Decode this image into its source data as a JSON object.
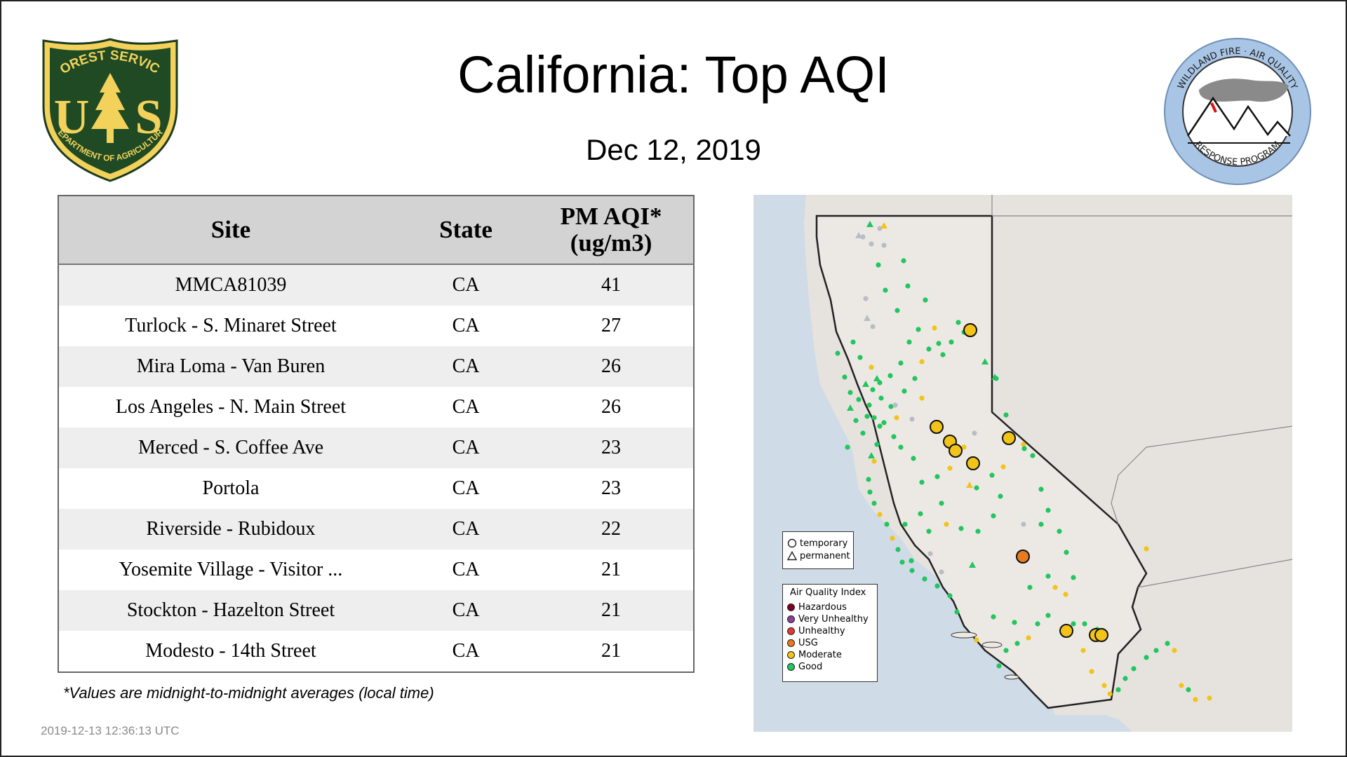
{
  "header": {
    "title": "California: Top AQI",
    "date": "Dec 12, 2019"
  },
  "logos": {
    "usfs": {
      "top_text": "FOREST SERVICE",
      "bottom_text": "DEPARTMENT OF AGRICULTURE",
      "letter_left": "U",
      "letter_right": "S",
      "icon": "tree-icon"
    },
    "wfaq": {
      "top_text": "WILDLAND FIRE · AIR QUALITY",
      "bottom_text": "RESPONSE PROGRAM",
      "icon": "mountain-icon"
    }
  },
  "table": {
    "headers": {
      "site": "Site",
      "state": "State",
      "aqi_line1": "PM AQI*",
      "aqi_line2": "(ug/m3)"
    },
    "rows": [
      {
        "site": "MMCA81039",
        "state": "CA",
        "aqi": "41"
      },
      {
        "site": "Turlock - S. Minaret Street",
        "state": "CA",
        "aqi": "27"
      },
      {
        "site": "Mira Loma - Van Buren",
        "state": "CA",
        "aqi": "26"
      },
      {
        "site": "Los Angeles - N. Main Street",
        "state": "CA",
        "aqi": "26"
      },
      {
        "site": "Merced - S. Coffee Ave",
        "state": "CA",
        "aqi": "23"
      },
      {
        "site": "Portola",
        "state": "CA",
        "aqi": "23"
      },
      {
        "site": "Riverside - Rubidoux",
        "state": "CA",
        "aqi": "22"
      },
      {
        "site": "Yosemite Village - Visitor ...",
        "state": "CA",
        "aqi": "21"
      },
      {
        "site": "Stockton - Hazelton Street",
        "state": "CA",
        "aqi": "21"
      },
      {
        "site": "Modesto - 14th Street",
        "state": "CA",
        "aqi": "21"
      }
    ]
  },
  "footnote": "*Values are midnight-to-midnight averages (local time)",
  "timestamp": "2019-12-13 12:36:13 UTC",
  "map": {
    "legend_type": {
      "temporary": "temporary",
      "permanent": "permanent"
    },
    "legend_aqi": {
      "title": "Air Quality Index",
      "items": [
        {
          "label": "Hazardous",
          "color": "#7e0023"
        },
        {
          "label": "Very Unhealthy",
          "color": "#8f3f97"
        },
        {
          "label": "Unhealthy",
          "color": "#e53935"
        },
        {
          "label": "USG",
          "color": "#e87b1e"
        },
        {
          "label": "Moderate",
          "color": "#f2c318"
        },
        {
          "label": "Good",
          "color": "#22c55e"
        }
      ]
    },
    "colors": {
      "water": "#cfdbe6",
      "land": "#e6e3df",
      "california": "#ece9e5",
      "border": "#222222",
      "gray_marker": "#b8bec6"
    }
  }
}
